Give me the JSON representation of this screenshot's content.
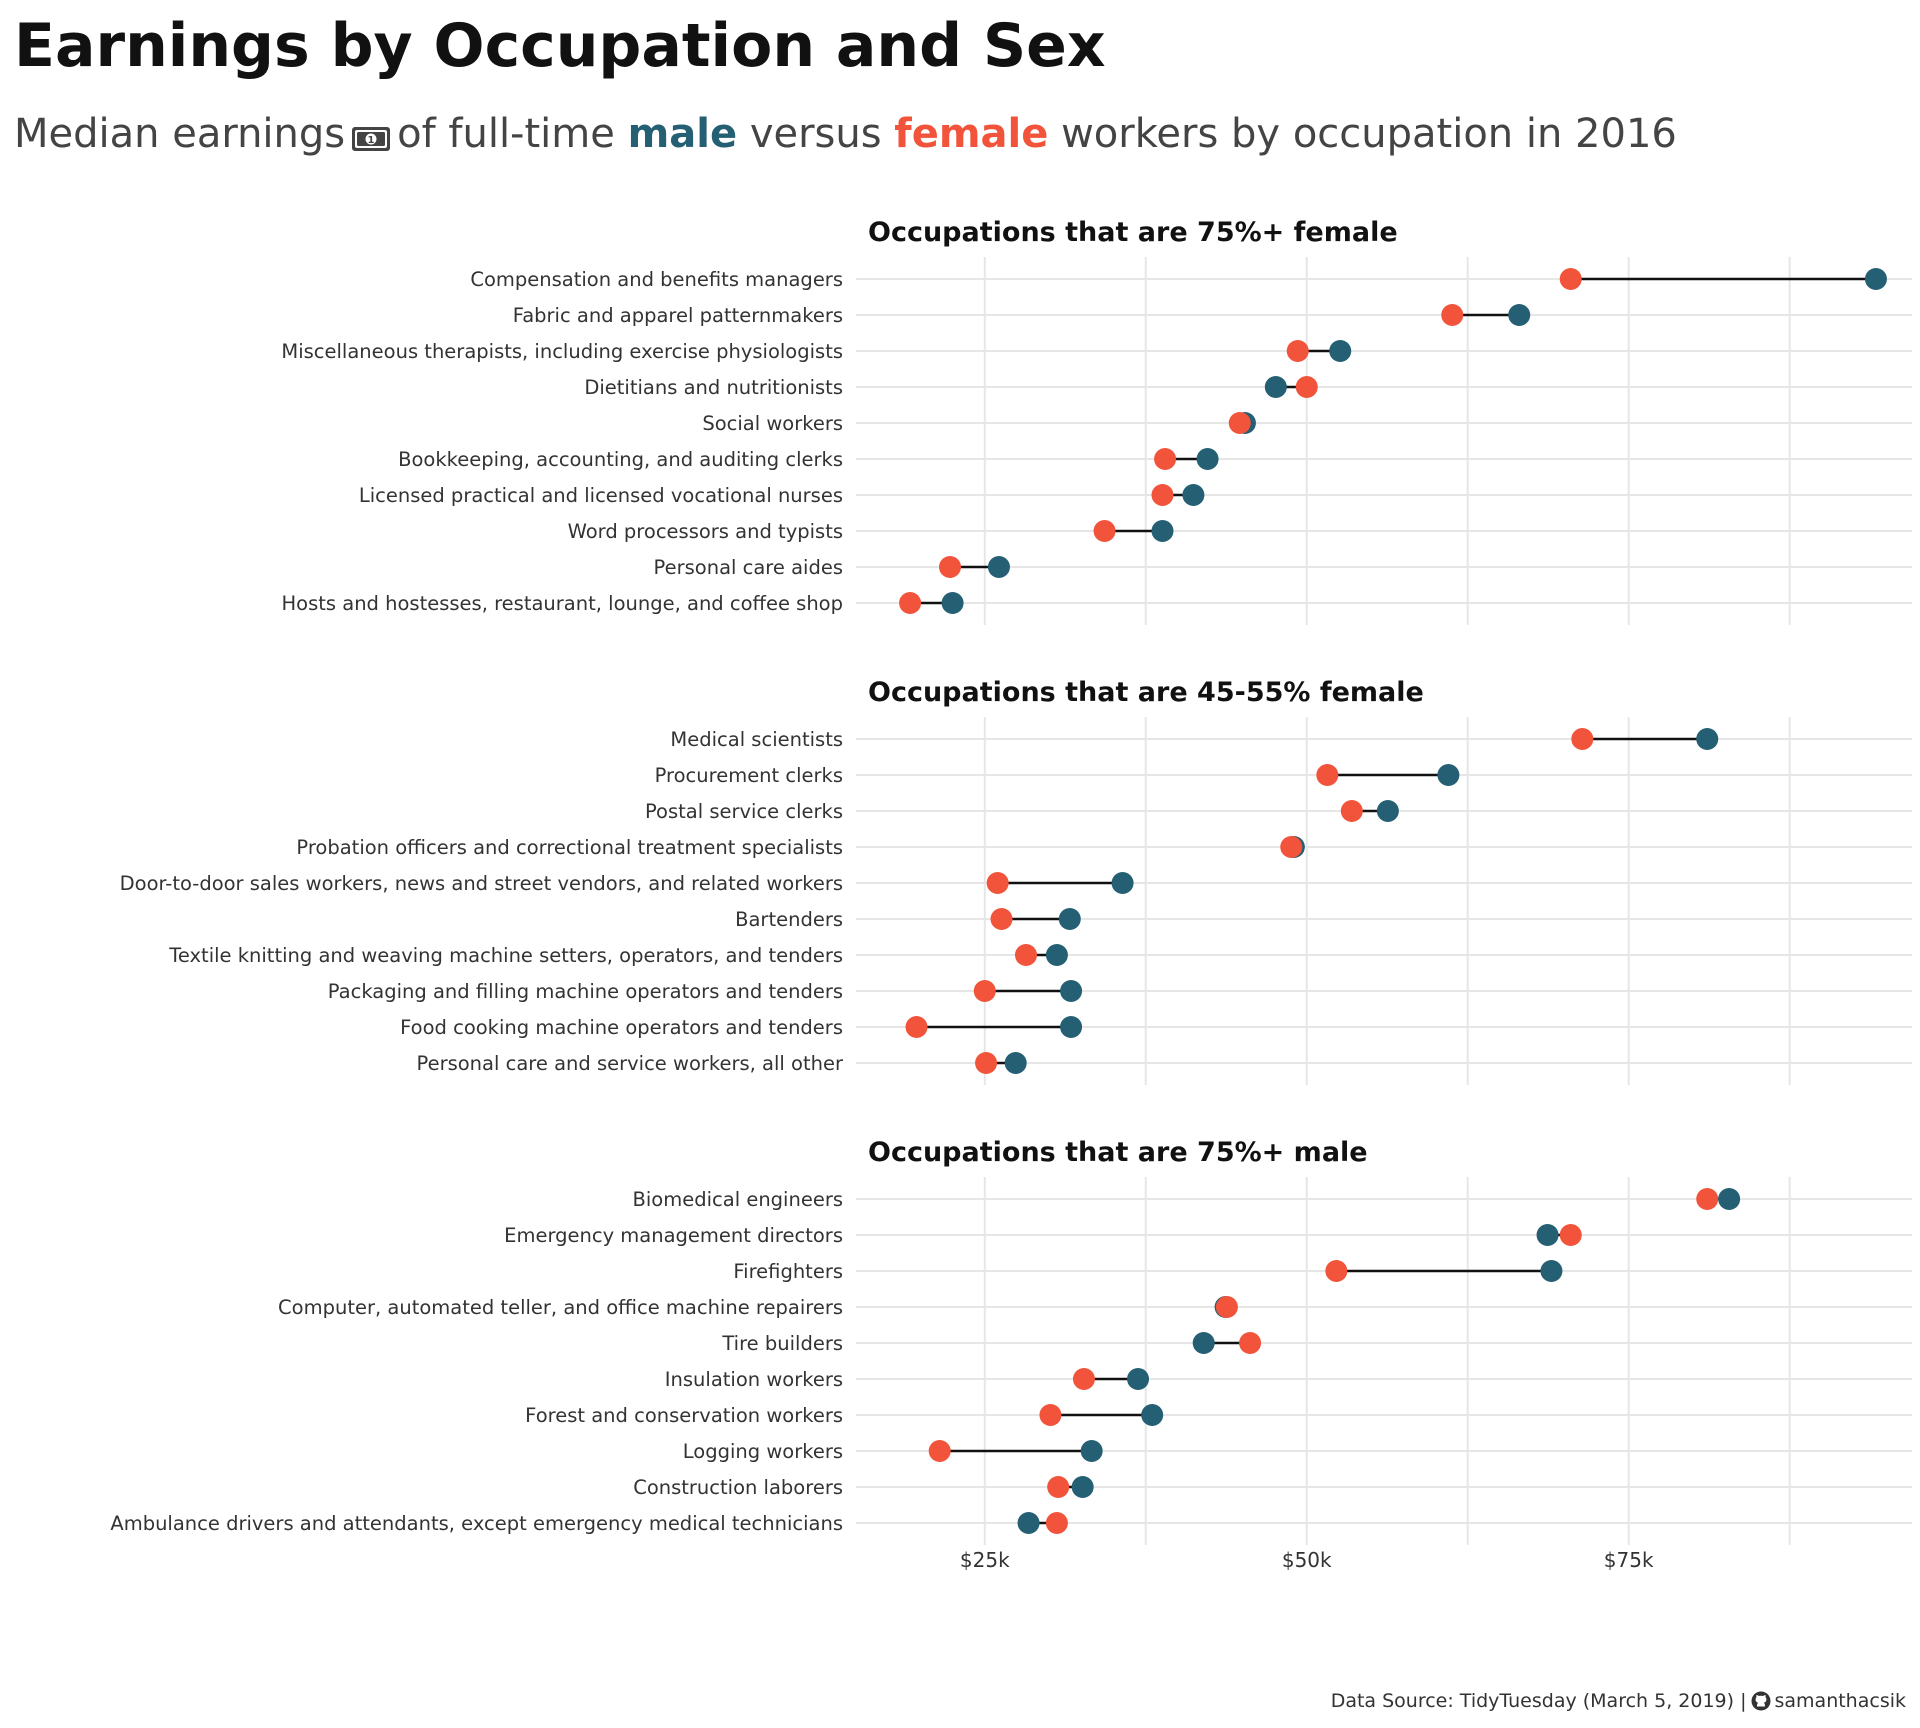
{
  "title": "Earnings by Occupation and Sex",
  "subtitle": {
    "prefix": "Median earnings",
    "icon": "dollar-bill-icon",
    "mid": "of full-time",
    "male_word": "male",
    "versus": "versus",
    "female_word": "female",
    "suffix": "workers by occupation in 2016"
  },
  "colors": {
    "male": "#245f73",
    "female": "#f2533b",
    "grid": "#e6e6e6",
    "segment": "#111111"
  },
  "footer": {
    "source": "Data Source: TidyTuesday (March 5, 2019) |",
    "icon": "github-icon",
    "author": "samanthacsik"
  },
  "chart_data": {
    "type": "dumbbell",
    "x_unit": "USD median earnings",
    "xlim": [
      15000,
      97000
    ],
    "x_ticks": [
      25000,
      50000,
      75000
    ],
    "x_tick_labels": [
      "$25k",
      "$50k",
      "$75k"
    ],
    "series": [
      {
        "name": "male",
        "key": "male"
      },
      {
        "name": "female",
        "key": "female"
      }
    ],
    "grid": true,
    "facets": [
      {
        "title": "Occupations that are 75%+ female",
        "rows": [
          {
            "occupation": "Compensation and benefits managers",
            "female": 70500,
            "male": 94200
          },
          {
            "occupation": "Fabric and apparel patternmakers",
            "female": 61300,
            "male": 66500
          },
          {
            "occupation": "Miscellaneous therapists, including exercise physiologists",
            "female": 49300,
            "male": 52600
          },
          {
            "occupation": "Dietitians and nutritionists",
            "female": 50000,
            "male": 47600
          },
          {
            "occupation": "Social workers",
            "female": 44800,
            "male": 45200
          },
          {
            "occupation": "Bookkeeping, accounting, and auditing clerks",
            "female": 39000,
            "male": 42300
          },
          {
            "occupation": "Licensed practical and licensed vocational nurses",
            "female": 38800,
            "male": 41200
          },
          {
            "occupation": "Word processors and typists",
            "female": 34300,
            "male": 38800
          },
          {
            "occupation": "Personal care aides",
            "female": 22300,
            "male": 26100
          },
          {
            "occupation": "Hosts and hostesses, restaurant, lounge, and coffee shop",
            "female": 19200,
            "male": 22500
          }
        ]
      },
      {
        "title": "Occupations that are 45-55% female",
        "rows": [
          {
            "occupation": "Medical scientists",
            "female": 71400,
            "male": 81100
          },
          {
            "occupation": "Procurement clerks",
            "female": 51600,
            "male": 61000
          },
          {
            "occupation": "Postal service clerks",
            "female": 53500,
            "male": 56300
          },
          {
            "occupation": "Probation officers and correctional treatment specialists",
            "female": 48800,
            "male": 49000
          },
          {
            "occupation": "Door-to-door sales workers, news and street vendors, and related workers",
            "female": 26000,
            "male": 35700
          },
          {
            "occupation": "Bartenders",
            "female": 26300,
            "male": 31600
          },
          {
            "occupation": "Textile knitting and weaving machine setters, operators, and tenders",
            "female": 28200,
            "male": 30600
          },
          {
            "occupation": "Packaging and filling machine operators and tenders",
            "female": 25000,
            "male": 31700
          },
          {
            "occupation": "Food cooking machine operators and tenders",
            "female": 19700,
            "male": 31700
          },
          {
            "occupation": "Personal care and service workers, all other",
            "female": 25100,
            "male": 27400
          }
        ]
      },
      {
        "title": "Occupations that are 75%+ male",
        "rows": [
          {
            "occupation": "Biomedical engineers",
            "female": 81100,
            "male": 82800
          },
          {
            "occupation": "Emergency management directors",
            "female": 70500,
            "male": 68700
          },
          {
            "occupation": "Firefighters",
            "female": 52300,
            "male": 69000
          },
          {
            "occupation": "Computer, automated teller, and office machine repairers",
            "female": 43800,
            "male": 43700
          },
          {
            "occupation": "Tire builders",
            "female": 45600,
            "male": 42000
          },
          {
            "occupation": "Insulation workers",
            "female": 32700,
            "male": 36900
          },
          {
            "occupation": "Forest and conservation workers",
            "female": 30100,
            "male": 38000
          },
          {
            "occupation": "Logging workers",
            "female": 21500,
            "male": 33300
          },
          {
            "occupation": "Construction laborers",
            "female": 30700,
            "male": 32600
          },
          {
            "occupation": "Ambulance drivers and attendants, except emergency medical technicians",
            "female": 30600,
            "male": 28400
          }
        ]
      }
    ]
  }
}
